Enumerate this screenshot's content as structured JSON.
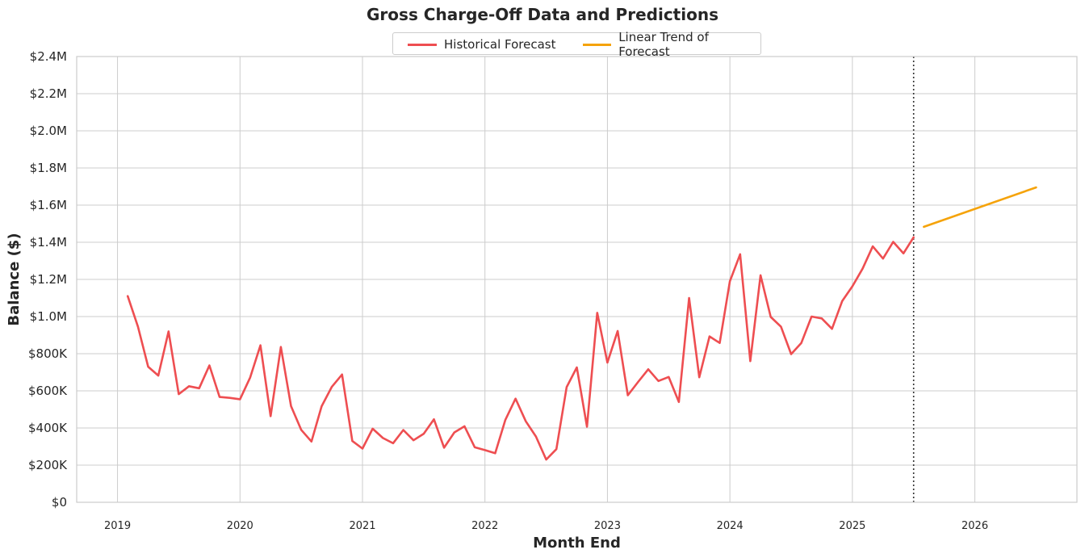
{
  "chart_data": {
    "type": "line",
    "title": "Gross Charge-Off Data and Predictions",
    "xlabel": "Month End",
    "ylabel": "Balance ($)",
    "ylim": [
      0,
      2400000
    ],
    "xlim": [
      "2018-09",
      "2026-11"
    ],
    "grid": true,
    "legend_position": "top-center",
    "y_ticks": [
      {
        "value": 0,
        "label": "$0"
      },
      {
        "value": 200000,
        "label": "$200K"
      },
      {
        "value": 400000,
        "label": "$400K"
      },
      {
        "value": 600000,
        "label": "$600K"
      },
      {
        "value": 800000,
        "label": "$800K"
      },
      {
        "value": 1000000,
        "label": "$1.0M"
      },
      {
        "value": 1200000,
        "label": "$1.2M"
      },
      {
        "value": 1400000,
        "label": "$1.4M"
      },
      {
        "value": 1600000,
        "label": "$1.6M"
      },
      {
        "value": 1800000,
        "label": "$1.8M"
      },
      {
        "value": 2000000,
        "label": "$2.0M"
      },
      {
        "value": 2200000,
        "label": "$2.2M"
      },
      {
        "value": 2400000,
        "label": "$2.4M"
      }
    ],
    "x_ticks": [
      {
        "value": "2019-01",
        "label": "2019"
      },
      {
        "value": "2020-01",
        "label": "2020"
      },
      {
        "value": "2021-01",
        "label": "2021"
      },
      {
        "value": "2022-01",
        "label": "2022"
      },
      {
        "value": "2023-01",
        "label": "2023"
      },
      {
        "value": "2024-01",
        "label": "2024"
      },
      {
        "value": "2025-01",
        "label": "2025"
      },
      {
        "value": "2026-01",
        "label": "2026"
      }
    ],
    "forecast_start_line": "2025-07",
    "series": [
      {
        "name": "Historical Forecast",
        "color": "#ee4e51",
        "x": [
          "2019-02",
          "2019-03",
          "2019-04",
          "2019-05",
          "2019-06",
          "2019-07",
          "2019-08",
          "2019-09",
          "2019-10",
          "2019-11",
          "2019-12",
          "2020-01",
          "2020-02",
          "2020-03",
          "2020-04",
          "2020-05",
          "2020-06",
          "2020-07",
          "2020-08",
          "2020-09",
          "2020-10",
          "2020-11",
          "2020-12",
          "2021-01",
          "2021-02",
          "2021-03",
          "2021-04",
          "2021-05",
          "2021-06",
          "2021-07",
          "2021-08",
          "2021-09",
          "2021-10",
          "2021-11",
          "2021-12",
          "2022-01",
          "2022-02",
          "2022-03",
          "2022-04",
          "2022-05",
          "2022-06",
          "2022-07",
          "2022-08",
          "2022-09",
          "2022-10",
          "2022-11",
          "2022-12",
          "2023-01",
          "2023-02",
          "2023-03",
          "2023-04",
          "2023-05",
          "2023-06",
          "2023-07",
          "2023-08",
          "2023-09",
          "2023-10",
          "2023-11",
          "2023-12",
          "2024-01",
          "2024-02",
          "2024-03",
          "2024-04",
          "2024-05",
          "2024-06",
          "2024-07",
          "2024-08",
          "2024-09",
          "2024-10",
          "2024-11",
          "2024-12",
          "2025-01",
          "2025-02",
          "2025-03",
          "2025-04",
          "2025-05",
          "2025-06",
          "2025-07"
        ],
        "y": [
          1110000,
          945000,
          730000,
          682000,
          920000,
          582000,
          625000,
          614000,
          737000,
          567000,
          562000,
          555000,
          672000,
          845000,
          464000,
          836000,
          518000,
          390000,
          327000,
          517000,
          622000,
          688000,
          330000,
          289000,
          396000,
          346000,
          318000,
          389000,
          334000,
          369000,
          447000,
          294000,
          376000,
          409000,
          296000,
          281000,
          264000,
          444000,
          558000,
          436000,
          354000,
          230000,
          286000,
          620000,
          726000,
          407000,
          1020000,
          752000,
          922000,
          576000,
          648000,
          716000,
          653000,
          675000,
          540000,
          1100000,
          673000,
          893000,
          858000,
          1190000,
          1335000,
          760000,
          1222000,
          998000,
          945000,
          798000,
          858000,
          1000000,
          990000,
          934000,
          1083000,
          1163000,
          1258000,
          1378000,
          1312000,
          1402000,
          1340000,
          1427000
        ]
      },
      {
        "name": "Linear Trend of Forecast",
        "color": "#f5a30a",
        "x": [
          "2025-08",
          "2026-07"
        ],
        "y": [
          1483000,
          1695000
        ]
      }
    ]
  }
}
